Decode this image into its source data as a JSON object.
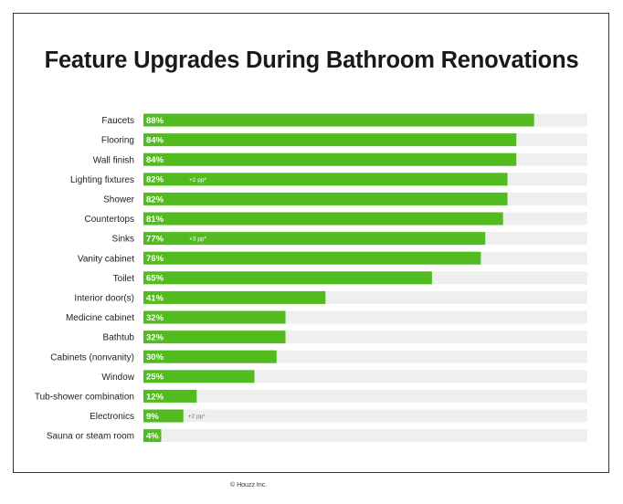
{
  "colors": {
    "bar": "#52bb1f",
    "track": "#efefef",
    "label": "#222222",
    "value_text": "#ffffff",
    "note_inside": "#ffffff",
    "note_outside": "#777777",
    "title": "#1a1a1a"
  },
  "chart_data": {
    "type": "bar",
    "orientation": "horizontal",
    "title": "Feature Upgrades During Bathroom Renovations",
    "xlabel": "",
    "ylabel": "",
    "xlim": [
      0,
      100
    ],
    "grid": false,
    "legend": "none",
    "categories": [
      "Faucets",
      "Flooring",
      "Wall finish",
      "Lighting fixtures",
      "Shower",
      "Countertops",
      "Sinks",
      "Vanity cabinet",
      "Toilet",
      "Interior door(s)",
      "Medicine cabinet",
      "Bathtub",
      "Cabinets (nonvanity)",
      "Window",
      "Tub-shower combination",
      "Electronics",
      "Sauna or steam room"
    ],
    "values": [
      88,
      84,
      84,
      82,
      82,
      81,
      77,
      76,
      65,
      41,
      32,
      32,
      30,
      25,
      12,
      9,
      4
    ],
    "value_labels": [
      "88%",
      "84%",
      "84%",
      "82%",
      "82%",
      "81%",
      "77%",
      "76%",
      "65%",
      "41%",
      "32%",
      "32%",
      "30%",
      "25%",
      "12%",
      "9%",
      "4%"
    ],
    "annotations": [
      {
        "category": "Lighting fixtures",
        "text": "+2 pp*"
      },
      {
        "category": "Sinks",
        "text": "+3 pp*"
      },
      {
        "category": "Electronics",
        "text": "+2 pp*"
      }
    ]
  },
  "footer": "© Houzz Inc."
}
